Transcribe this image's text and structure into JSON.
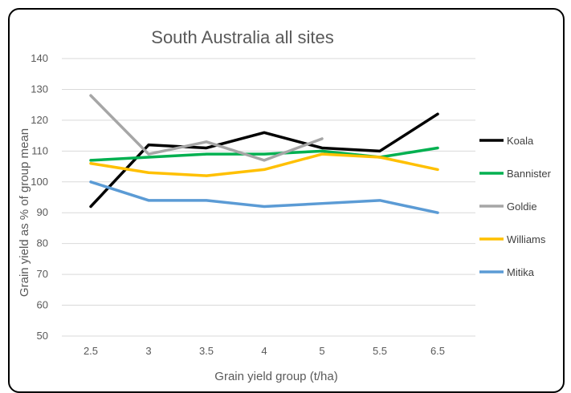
{
  "chart_data": {
    "type": "line",
    "title": "South Australia all sites",
    "xlabel": "Grain yield group (t/ha)",
    "ylabel": "Grain yield as % of group mean",
    "categories": [
      "2.5",
      "3",
      "3.5",
      "4",
      "5",
      "5.5",
      "6.5"
    ],
    "ylim": [
      50,
      140
    ],
    "yticks": [
      50,
      60,
      70,
      80,
      90,
      100,
      110,
      120,
      130,
      140
    ],
    "grid": true,
    "legend_position": "right",
    "series": [
      {
        "name": "Koala",
        "color": "#000000",
        "values": [
          92,
          112,
          111,
          116,
          111,
          110,
          122
        ]
      },
      {
        "name": "Bannister",
        "color": "#00b050",
        "values": [
          107,
          108,
          109,
          109,
          110,
          108,
          111
        ]
      },
      {
        "name": "Goldie",
        "color": "#a6a6a6",
        "values": [
          128,
          109,
          113,
          107,
          114,
          null,
          null
        ]
      },
      {
        "name": "Williams",
        "color": "#ffc000",
        "values": [
          106,
          103,
          102,
          104,
          109,
          108,
          104
        ]
      },
      {
        "name": "Mitika",
        "color": "#5b9bd5",
        "values": [
          100,
          94,
          94,
          92,
          93,
          94,
          90
        ]
      }
    ]
  }
}
